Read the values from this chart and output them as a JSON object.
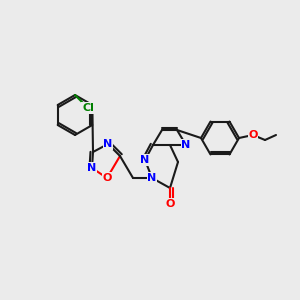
{
  "bg": "#ebebeb",
  "C": "#1a1a1a",
  "N": "#0000ff",
  "O": "#ff0000",
  "Cl": "#008000",
  "lw": 1.5,
  "fs": 8.0
}
